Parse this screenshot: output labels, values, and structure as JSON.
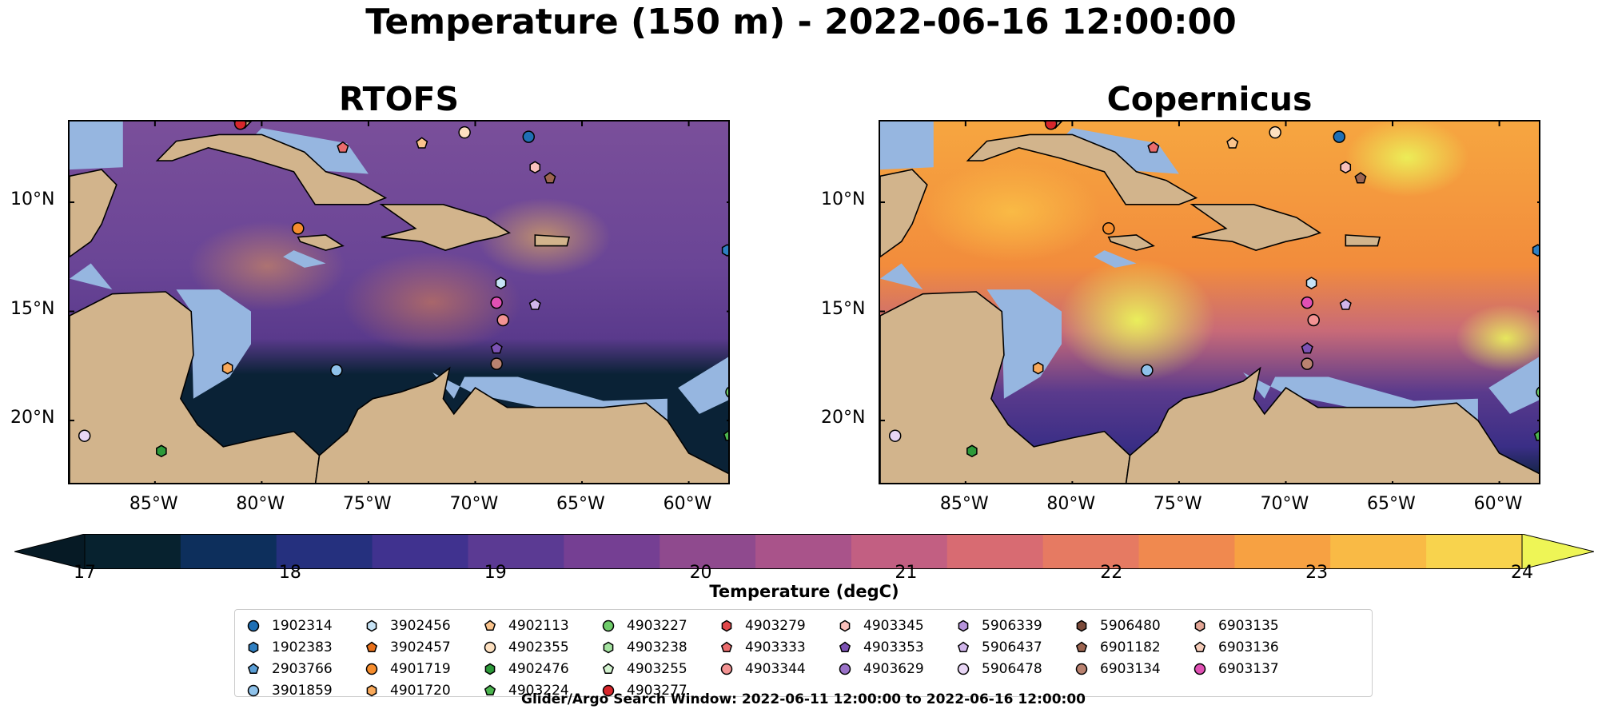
{
  "suptitle": "Temperature (150 m) - 2022-06-16 12:00:00",
  "panels": [
    {
      "title": "RTOFS",
      "style": "rtofs"
    },
    {
      "title": "Copernicus",
      "style": "copernicus"
    }
  ],
  "lat_labels": [
    "20°N",
    "15°N",
    "10°N"
  ],
  "lon_labels": [
    "85°W",
    "80°W",
    "75°W",
    "70°W",
    "65°W",
    "60°W"
  ],
  "colorbar": {
    "title": "Temperature (degC)",
    "ticks": [
      "17",
      "18",
      "19",
      "20",
      "21",
      "22",
      "23",
      "24"
    ],
    "colors": [
      "#07222f",
      "#0d2f5c",
      "#25307e",
      "#40328f",
      "#5b3a93",
      "#753f93",
      "#8f4a8e",
      "#a9538a",
      "#c25f82",
      "#d86b72",
      "#e67a62",
      "#f0894f",
      "#f7a142",
      "#f9ba45",
      "#f8d34d"
    ],
    "under_color": "#061a25",
    "over_color": "#eef556"
  },
  "legend": {
    "columns": [
      [
        {
          "id": "1902314",
          "color": "#1f6fb4",
          "marker": "circle"
        },
        {
          "id": "1902383",
          "color": "#2f7fc1",
          "marker": "hexagon"
        },
        {
          "id": "2903766",
          "color": "#5a9ed6",
          "marker": "pentagon"
        },
        {
          "id": "3901859",
          "color": "#8fc2ea",
          "marker": "circle"
        }
      ],
      [
        {
          "id": "3902456",
          "color": "#c6e3f5",
          "marker": "hexagon"
        },
        {
          "id": "3902457",
          "color": "#e8701a",
          "marker": "pentagon"
        },
        {
          "id": "4901719",
          "color": "#f68d2e",
          "marker": "circle"
        },
        {
          "id": "4901720",
          "color": "#f9a95a",
          "marker": "hexagon"
        }
      ],
      [
        {
          "id": "4902113",
          "color": "#fbc48c",
          "marker": "pentagon"
        },
        {
          "id": "4902355",
          "color": "#fde0c0",
          "marker": "circle"
        },
        {
          "id": "4902476",
          "color": "#2d9a3a",
          "marker": "hexagon"
        },
        {
          "id": "4903224",
          "color": "#4cb54f",
          "marker": "pentagon"
        }
      ],
      [
        {
          "id": "4903227",
          "color": "#6fcc6a",
          "marker": "circle"
        },
        {
          "id": "4903238",
          "color": "#a4e3a0",
          "marker": "hexagon"
        },
        {
          "id": "4903255",
          "color": "#d3f2cf",
          "marker": "pentagon"
        },
        {
          "id": "4903277",
          "color": "#d7262b",
          "marker": "circle"
        }
      ],
      [
        {
          "id": "4903279",
          "color": "#e0474a",
          "marker": "hexagon"
        },
        {
          "id": "4903333",
          "color": "#ea6c6d",
          "marker": "pentagon"
        },
        {
          "id": "4903344",
          "color": "#f39393",
          "marker": "circle"
        }
      ],
      [
        {
          "id": "4903345",
          "color": "#f9c0bc",
          "marker": "hexagon"
        },
        {
          "id": "4903353",
          "color": "#7c52b4",
          "marker": "pentagon"
        },
        {
          "id": "4903629",
          "color": "#9a72c8",
          "marker": "circle"
        }
      ],
      [
        {
          "id": "5906339",
          "color": "#b694db",
          "marker": "hexagon"
        },
        {
          "id": "5906437",
          "color": "#d0b5ea",
          "marker": "pentagon"
        },
        {
          "id": "5906478",
          "color": "#e8d6f5",
          "marker": "circle"
        }
      ],
      [
        {
          "id": "5906480",
          "color": "#7b4a3a",
          "marker": "hexagon"
        },
        {
          "id": "6901182",
          "color": "#9c6450",
          "marker": "pentagon"
        },
        {
          "id": "6903134",
          "color": "#b98270",
          "marker": "circle"
        }
      ],
      [
        {
          "id": "6903135",
          "color": "#e3a696",
          "marker": "hexagon"
        },
        {
          "id": "6903136",
          "color": "#f5cbb8",
          "marker": "pentagon"
        },
        {
          "id": "6903137",
          "color": "#e050b4",
          "marker": "circle"
        }
      ]
    ]
  },
  "search_window": "Glider/Argo Search Window: 2022-06-11 12:00:00 to 2022-06-16 12:00:00",
  "chart_data": {
    "type": "heatmap",
    "title": "Temperature (150 m) - 2022-06-16 12:00:00",
    "subplots": [
      "RTOFS",
      "Copernicus"
    ],
    "variable": "Temperature (degC)",
    "depth": "150 m",
    "colorbar_range": [
      17,
      24
    ],
    "colorbar_extend": "both",
    "xlim": [
      -89,
      -58
    ],
    "ylim": [
      7,
      23.7
    ],
    "x_ticks": [
      -85,
      -80,
      -75,
      -70,
      -65,
      -60
    ],
    "y_ticks": [
      10,
      15,
      20
    ],
    "floats": [
      {
        "id": "1902314",
        "lon": -67.5,
        "lat": 23.0
      },
      {
        "id": "1902383",
        "lon": -58.2,
        "lat": 17.8
      },
      {
        "id": "3901859",
        "lon": -76.5,
        "lat": 12.3
      },
      {
        "id": "3902456",
        "lon": -68.8,
        "lat": 16.3
      },
      {
        "id": "4901719",
        "lon": -78.3,
        "lat": 18.8
      },
      {
        "id": "4901720",
        "lon": -81.6,
        "lat": 12.4
      },
      {
        "id": "4902113",
        "lon": -72.5,
        "lat": 22.7
      },
      {
        "id": "4902355",
        "lon": -70.5,
        "lat": 23.2
      },
      {
        "id": "4902476",
        "lon": -84.7,
        "lat": 8.6
      },
      {
        "id": "4903224",
        "lon": -58.1,
        "lat": 9.3
      },
      {
        "id": "4903227",
        "lon": -58.0,
        "lat": 11.3
      },
      {
        "id": "4903277",
        "lon": -81.0,
        "lat": 23.6
      },
      {
        "id": "4903333",
        "lon": -76.2,
        "lat": 22.5
      },
      {
        "id": "4903344",
        "lon": -68.7,
        "lat": 14.6
      },
      {
        "id": "4903345",
        "lon": -67.2,
        "lat": 21.6
      },
      {
        "id": "4903353",
        "lon": -69.0,
        "lat": 13.3
      },
      {
        "id": "5906437",
        "lon": -67.2,
        "lat": 15.3
      },
      {
        "id": "5906478",
        "lon": -88.3,
        "lat": 9.3
      },
      {
        "id": "6901182",
        "lon": -66.5,
        "lat": 21.1
      },
      {
        "id": "6903134",
        "lon": -69.0,
        "lat": 12.6
      },
      {
        "id": "6903137",
        "lon": -69.0,
        "lat": 15.4
      }
    ]
  }
}
